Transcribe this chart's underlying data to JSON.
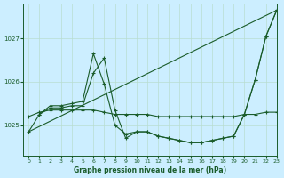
{
  "background_color": "#cceeff",
  "grid_color": "#b8ddd0",
  "line_color": "#1a5c2a",
  "title": "Graphe pression niveau de la mer (hPa)",
  "xlim": [
    -0.5,
    23
  ],
  "ylim": [
    1024.3,
    1027.8
  ],
  "yticks": [
    1025,
    1026,
    1027
  ],
  "xticks": [
    0,
    1,
    2,
    3,
    4,
    5,
    6,
    7,
    8,
    9,
    10,
    11,
    12,
    13,
    14,
    15,
    16,
    17,
    18,
    19,
    20,
    21,
    22,
    23
  ],
  "series1_nomarker": {
    "x": [
      0,
      23
    ],
    "y": [
      1024.85,
      1027.65
    ]
  },
  "series2_marker": {
    "x": [
      0,
      1,
      2,
      3,
      4,
      5,
      6,
      7,
      8,
      9,
      10,
      11,
      12,
      13,
      14,
      15,
      16,
      17,
      18,
      19,
      20,
      21,
      22,
      23
    ],
    "y": [
      1024.85,
      1025.25,
      1025.45,
      1025.45,
      1025.5,
      1025.55,
      1026.65,
      1025.95,
      1025.0,
      1024.8,
      1024.85,
      1024.85,
      1024.75,
      1024.7,
      1024.65,
      1024.6,
      1024.6,
      1024.65,
      1024.7,
      1024.75,
      1025.25,
      1026.05,
      1027.05,
      1027.65
    ]
  },
  "series3_flat": {
    "x": [
      0,
      1,
      2,
      3,
      4,
      5,
      6,
      7,
      8,
      9,
      10,
      11,
      12,
      13,
      14,
      15,
      16,
      17,
      18,
      19,
      20,
      21,
      22,
      23
    ],
    "y": [
      1025.2,
      1025.3,
      1025.35,
      1025.35,
      1025.35,
      1025.35,
      1025.35,
      1025.3,
      1025.25,
      1025.25,
      1025.25,
      1025.25,
      1025.2,
      1025.2,
      1025.2,
      1025.2,
      1025.2,
      1025.2,
      1025.2,
      1025.2,
      1025.25,
      1025.25,
      1025.3,
      1025.3
    ]
  },
  "series4_low": {
    "x": [
      1,
      2,
      3,
      4,
      5,
      6,
      7,
      8,
      9,
      10,
      11,
      12,
      13,
      14,
      15,
      16,
      17,
      18,
      19,
      20,
      21,
      22,
      23
    ],
    "y": [
      1025.25,
      1025.4,
      1025.4,
      1025.45,
      1025.45,
      1026.2,
      1026.55,
      1025.35,
      1024.7,
      1024.85,
      1024.85,
      1024.75,
      1024.7,
      1024.65,
      1024.6,
      1024.6,
      1024.65,
      1024.7,
      1024.75,
      1025.25,
      1026.05,
      1027.05,
      1027.65
    ]
  }
}
